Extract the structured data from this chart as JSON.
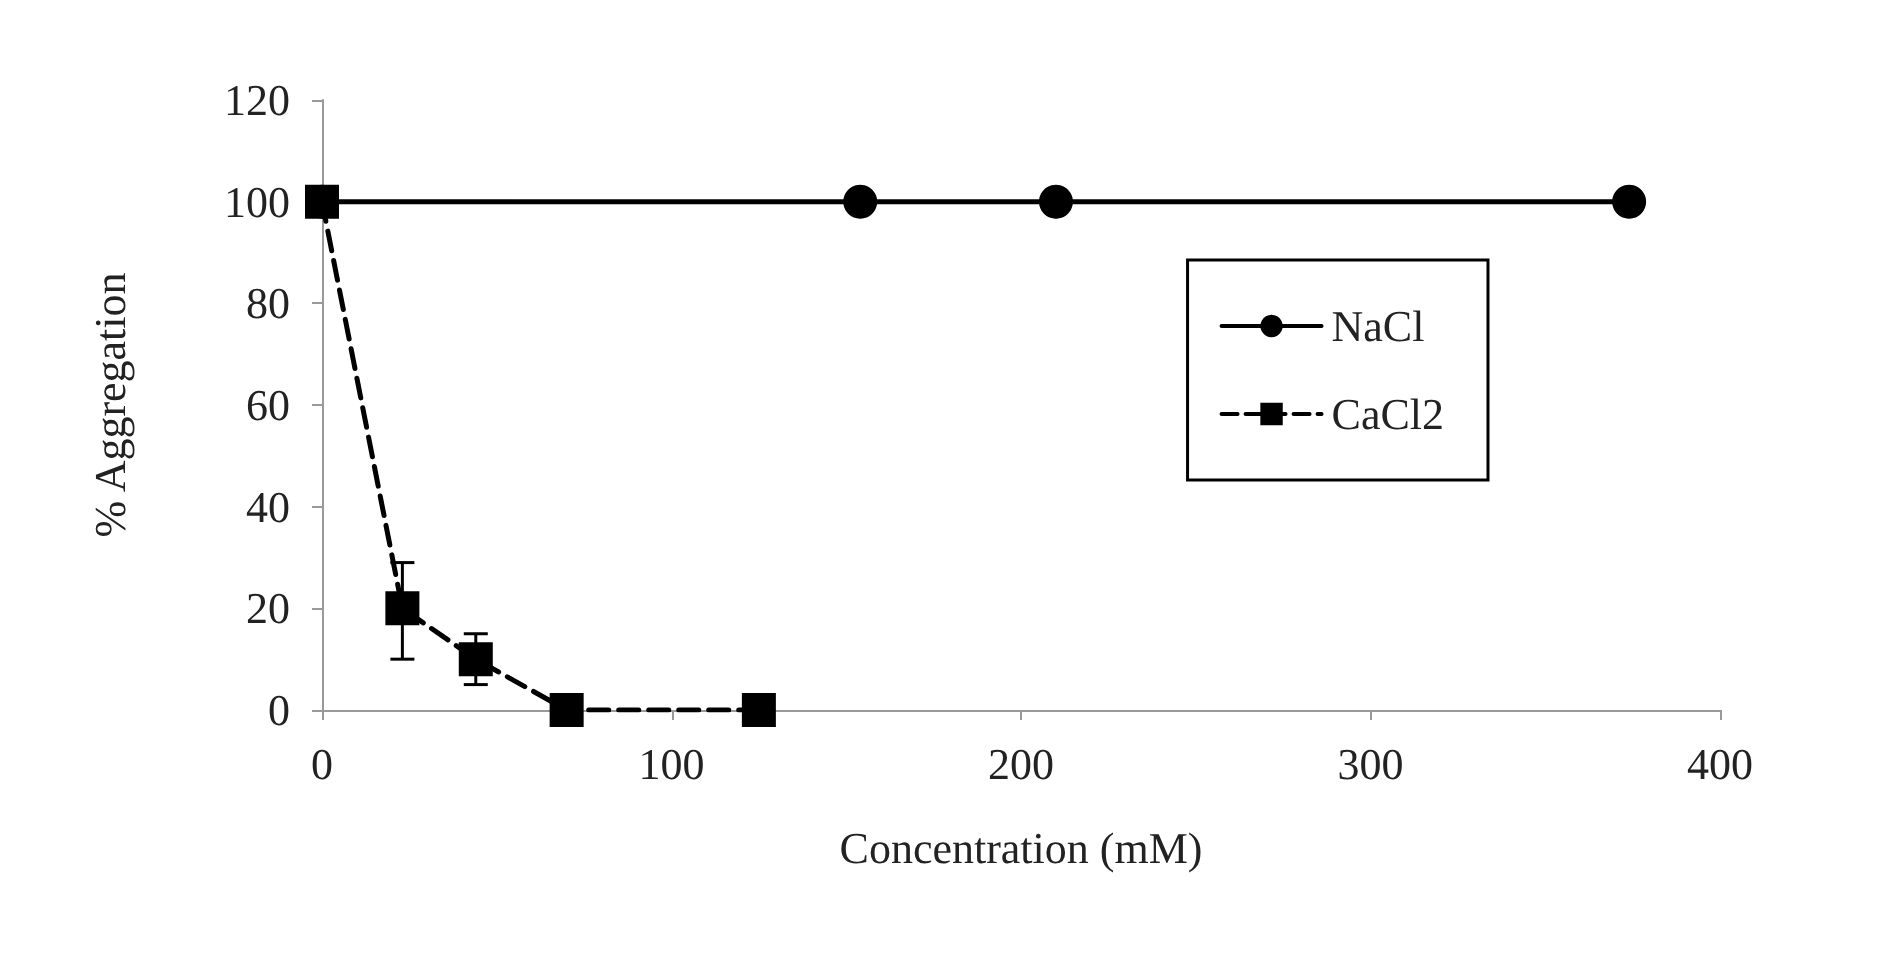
{
  "chart_data": {
    "type": "line",
    "xlabel": "Concentration (mM)",
    "ylabel": "% Aggregation",
    "xlim": [
      0,
      400
    ],
    "xticks": [
      0,
      100,
      200,
      300,
      400
    ],
    "ylim": [
      0,
      120
    ],
    "yticks": [
      0,
      20,
      40,
      60,
      80,
      100,
      120
    ],
    "grid": false,
    "legend": "top right",
    "series": [
      {
        "name": "NaCl",
        "color": "#000000",
        "x": [
          0,
          154,
          210,
          374
        ],
        "values": [
          100,
          100,
          100,
          100
        ],
        "marker": "circle",
        "line_style": "solid"
      },
      {
        "name": "CaCl2",
        "color": "#000000",
        "x": [
          0,
          23,
          44,
          70,
          125
        ],
        "values": [
          100,
          20,
          10,
          0,
          0
        ],
        "errors": [
          null,
          [
            10,
            29
          ],
          [
            5,
            15
          ],
          null,
          null
        ],
        "marker": "square",
        "line_style": "dashed"
      }
    ]
  }
}
